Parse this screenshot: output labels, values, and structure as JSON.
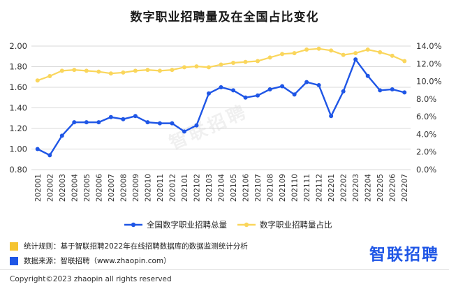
{
  "title": "数字职业招聘量及在全国占比变化",
  "watermark": "智联招聘",
  "notes": [
    {
      "text": "统计规则：基于智联招聘2022年在线招聘数据库的数据监测统计分析",
      "color": "#f5c431"
    },
    {
      "text": "数据来源：智联招聘（www.zhaopin.com）",
      "color": "#1f56e6"
    }
  ],
  "brand": "智联招聘",
  "copyright": "Copyright©2023 zhaopin all rights reserved",
  "chart_data": {
    "type": "line",
    "title": "数字职业招聘量及在全国占比变化",
    "categories": [
      "202001",
      "202002",
      "202003",
      "202004",
      "202005",
      "202006",
      "202007",
      "202008",
      "202009",
      "202010",
      "202011",
      "202012",
      "202101",
      "202102",
      "202103",
      "202104",
      "202105",
      "202106",
      "202107",
      "202108",
      "202109",
      "202110",
      "202111",
      "202112",
      "202201",
      "202202",
      "202203",
      "202204",
      "202205",
      "202206",
      "202207"
    ],
    "series": [
      {
        "name": "全国数字职业招聘总量",
        "axis": "left",
        "color": "#1f56e6",
        "values": [
          1.0,
          0.94,
          1.13,
          1.26,
          1.26,
          1.26,
          1.31,
          1.29,
          1.32,
          1.26,
          1.25,
          1.25,
          1.17,
          1.23,
          1.54,
          1.6,
          1.57,
          1.5,
          1.52,
          1.58,
          1.61,
          1.53,
          1.65,
          1.62,
          1.32,
          1.56,
          1.87,
          1.71,
          1.57,
          1.58,
          1.55
        ]
      },
      {
        "name": "数字职业招聘量占比",
        "axis": "right",
        "color": "#fad65c",
        "values": [
          10.1,
          10.6,
          11.2,
          11.3,
          11.2,
          11.1,
          10.9,
          11.0,
          11.2,
          11.3,
          11.2,
          11.3,
          11.6,
          11.7,
          11.6,
          11.9,
          12.1,
          12.2,
          12.3,
          12.7,
          13.1,
          13.2,
          13.6,
          13.7,
          13.5,
          13.0,
          13.2,
          13.6,
          13.3,
          12.9,
          12.3
        ]
      }
    ],
    "y_left": {
      "min": 0.8,
      "max": 2.0,
      "ticks": [
        "0.80",
        "1.00",
        "1.20",
        "1.40",
        "1.60",
        "1.80",
        "2.00"
      ]
    },
    "y_right": {
      "min": 0,
      "max": 14,
      "ticks": [
        "0.0%",
        "2.0%",
        "4.0%",
        "6.0%",
        "8.0%",
        "10.0%",
        "12.0%",
        "14.0%"
      ]
    },
    "grid": true,
    "legend_position": "bottom"
  }
}
